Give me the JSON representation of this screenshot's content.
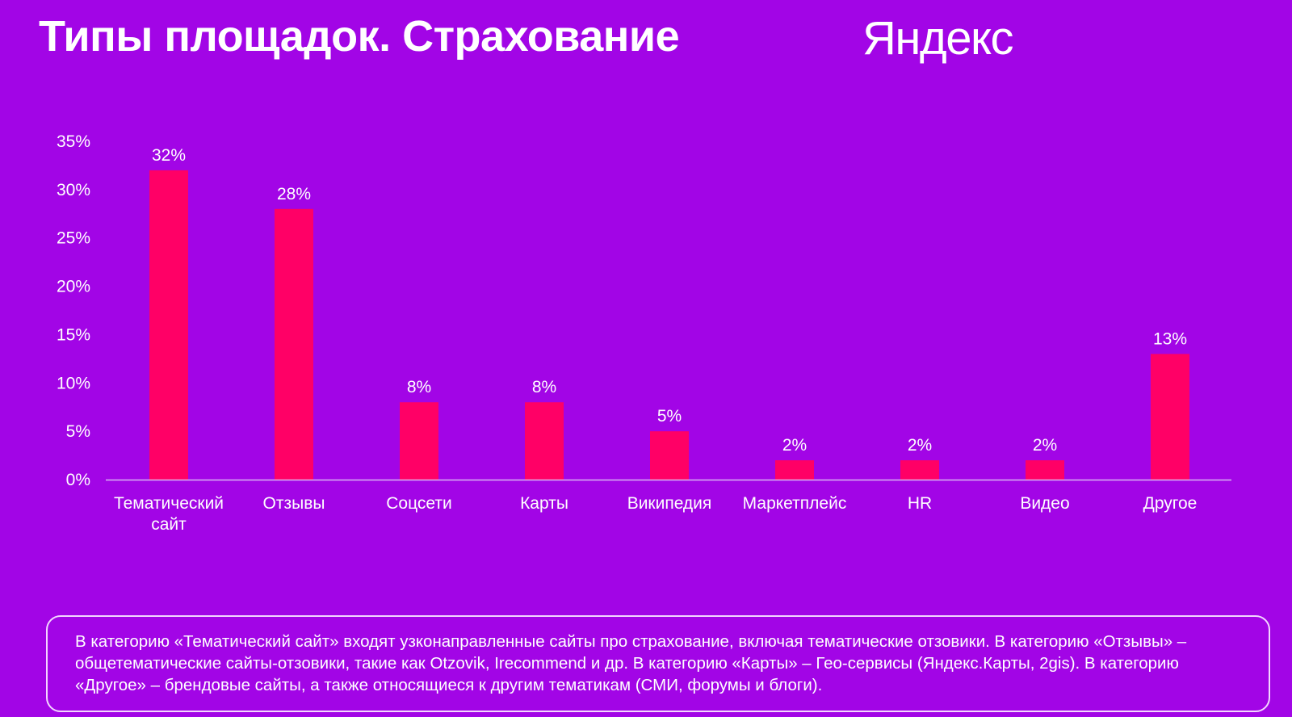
{
  "slide": {
    "title": "Типы площадок. Страхование",
    "brand": "Яндекс",
    "note": "В категорию «Тематический сайт» входят узконаправленные сайты про страхование, включая тематические отзовики. В категорию «Отзывы» – общетематические сайты-отзовики, такие как Otzovik, Irecommend и др. В категорию «Карты» – Гео-сервисы (Яндекс.Карты, 2gis). В категорию «Другое» – брендовые сайты, а также относящиеся к другим тематикам (СМИ, форумы и блоги)."
  },
  "chart_data": {
    "type": "bar",
    "title": "",
    "xlabel": "",
    "ylabel": "",
    "categories": [
      [
        "Тематический",
        "сайт"
      ],
      [
        "Отзывы"
      ],
      [
        "Соцсети"
      ],
      [
        "Карты"
      ],
      [
        "Википедия"
      ],
      [
        "Маркетплейс"
      ],
      [
        "HR"
      ],
      [
        "Видео"
      ],
      [
        "Другое"
      ]
    ],
    "values": [
      32,
      28,
      8,
      8,
      5,
      2,
      2,
      2,
      13
    ],
    "value_labels": [
      "32%",
      "28%",
      "8%",
      "8%",
      "5%",
      "2%",
      "2%",
      "2%",
      "13%"
    ],
    "ylim": [
      0,
      35
    ],
    "yticks": [
      0,
      5,
      10,
      15,
      20,
      25,
      30,
      35
    ],
    "ytick_labels": [
      "0%",
      "5%",
      "10%",
      "15%",
      "20%",
      "25%",
      "30%",
      "35%"
    ],
    "grid": false,
    "legend": "none",
    "colors": {
      "bar": "#ff0066",
      "axis": "#d9b3f5",
      "background": "#a205e6"
    }
  }
}
